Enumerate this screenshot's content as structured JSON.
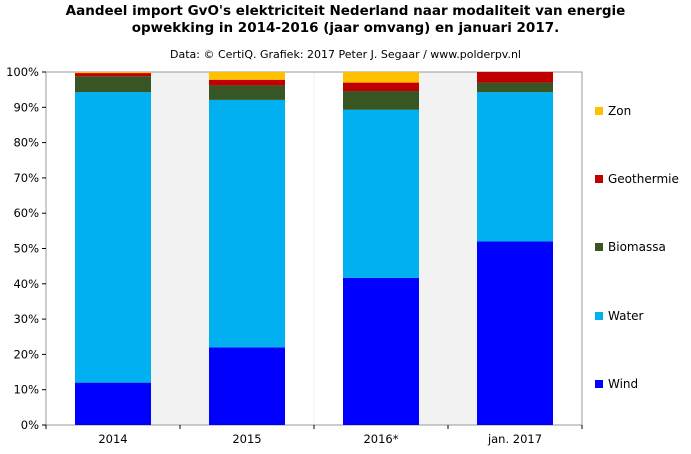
{
  "title_line1": "Aandeel import GvO's elektriciteit  Nederland naar modaliteit van energie",
  "title_line2": "opwekking  in 2014-2016  (jaar omvang) en januari 2017.",
  "subtitle": "Data: © CertiQ. Grafiek: 2017 Peter J. Segaar / www.polderpv.nl",
  "chart_data": {
    "type": "bar",
    "stacked": true,
    "categories": [
      "2014",
      "2015",
      "2016*",
      "jan. 2017"
    ],
    "series": [
      {
        "name": "Wind",
        "color": "#0000ff",
        "values": [
          12,
          22,
          41.7,
          52
        ]
      },
      {
        "name": "Water",
        "color": "#00b0f0",
        "values": [
          82.3,
          70.1,
          47.6,
          42.3
        ]
      },
      {
        "name": "Biomassa",
        "color": "#375623",
        "values": [
          4.5,
          4.1,
          5.3,
          2.7
        ]
      },
      {
        "name": "Geothermie",
        "color": "#c00000",
        "values": [
          0.9,
          1.6,
          2.4,
          3.0
        ]
      },
      {
        "name": "Zon",
        "color": "#ffc000",
        "values": [
          0.3,
          2.2,
          3.0,
          0
        ]
      }
    ],
    "y_ticks": [
      "0%",
      "10%",
      "20%",
      "30%",
      "40%",
      "50%",
      "60%",
      "70%",
      "80%",
      "90%",
      "100%"
    ],
    "ylim": [
      0,
      100
    ],
    "legend_position": "right",
    "legend_order": [
      "Zon",
      "Geothermie",
      "Biomassa",
      "Water",
      "Wind"
    ],
    "plot_background": "#f2f2f2",
    "bands": "alternating-white-columns"
  }
}
